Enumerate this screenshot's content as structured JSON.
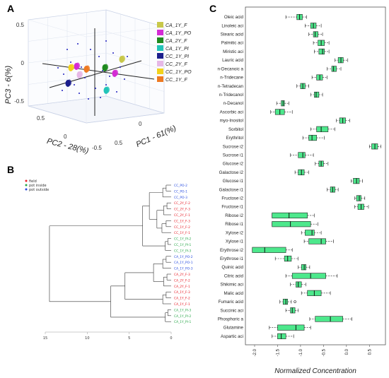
{
  "panels": {
    "a": "A",
    "b": "B",
    "c": "C"
  },
  "chart_data": [
    {
      "type": "scatter",
      "panel": "A",
      "xlabel": "PC2 - 28(%)",
      "ylabel": "PC3 - 6(%)",
      "zlabel": "PC1 - 61(%)",
      "tick_labels": {
        "pc2": [
          "0.5",
          "0",
          "-0.5"
        ],
        "pc1": [
          "0.5",
          "0"
        ],
        "pc3": [
          "0.5",
          "0",
          "-0.5"
        ]
      },
      "legend": [
        {
          "name": "CA_1Y_F",
          "color": "#c8c84a"
        },
        {
          "name": "CA_1Y_PO",
          "color": "#d42bd4"
        },
        {
          "name": "CA_2Y_F",
          "color": "#1e8a1e"
        },
        {
          "name": "CA_1Y_PI",
          "color": "#22c4b8"
        },
        {
          "name": "CC_1Y_PI",
          "color": "#1c1f8c"
        },
        {
          "name": "CC_2Y_F",
          "color": "#e6b8e6"
        },
        {
          "name": "CC_1Y_PO",
          "color": "#f2d21c"
        },
        {
          "name": "CC_1Y_F",
          "color": "#ee7a22"
        }
      ]
    },
    {
      "type": "dendrogram",
      "panel": "B",
      "legend": [
        {
          "name": "field",
          "color": "#e8202a"
        },
        {
          "name": "pot inside",
          "color": "#2aa84a"
        },
        {
          "name": "pot outside",
          "color": "#2a4ee0"
        }
      ],
      "leaves": [
        {
          "label": "CC_PO-2",
          "group": "pot outside"
        },
        {
          "label": "CC_PO-1",
          "group": "pot outside"
        },
        {
          "label": "CC_PO-3",
          "group": "pot outside"
        },
        {
          "label": "CC_2Y_F-2",
          "group": "field"
        },
        {
          "label": "CC_2Y_F-3",
          "group": "field"
        },
        {
          "label": "CC_2Y_F-1",
          "group": "field"
        },
        {
          "label": "CC_1Y_F-3",
          "group": "field"
        },
        {
          "label": "CC_1Y_F-2",
          "group": "field"
        },
        {
          "label": "CC_1Y_F-1",
          "group": "field"
        },
        {
          "label": "CC_1Y_PI-2",
          "group": "pot inside"
        },
        {
          "label": "CC_1Y_PI-1",
          "group": "pot inside"
        },
        {
          "label": "CC_1Y_PI-3",
          "group": "pot inside"
        },
        {
          "label": "CA_1Y_PO-2",
          "group": "pot outside"
        },
        {
          "label": "CA_1Y_PO-1",
          "group": "pot outside"
        },
        {
          "label": "CA_1Y_PO-3",
          "group": "pot outside"
        },
        {
          "label": "CA_2Y_F-3",
          "group": "field"
        },
        {
          "label": "CA_2Y_F-2",
          "group": "field"
        },
        {
          "label": "CA_2Y_F-1",
          "group": "field"
        },
        {
          "label": "CA_1Y_F-3",
          "group": "field"
        },
        {
          "label": "CA_1Y_F-2",
          "group": "field"
        },
        {
          "label": "CA_1Y_F-1",
          "group": "field"
        },
        {
          "label": "CA_1Y_PI-3",
          "group": "pot inside"
        },
        {
          "label": "CA_1Y_PI-2",
          "group": "pot inside"
        },
        {
          "label": "CA_1Y_PI-1",
          "group": "pot inside"
        }
      ],
      "x_ticks": [
        "15",
        "10",
        "5",
        "0"
      ]
    },
    {
      "type": "boxplot",
      "panel": "C",
      "xlabel": "Normalized Concentration",
      "xlim": [
        -2.2,
        0.85
      ],
      "x_ticks": [
        "-2.0",
        "-1.5",
        "-1.0",
        "-0.5",
        "0.0",
        "0.5"
      ],
      "box_color": "#4de88c",
      "items": [
        {
          "label": "Oleic acid",
          "whisker_low": -1.32,
          "q1": -1.08,
          "median": -1.02,
          "q3": -0.96,
          "whisker_high": -0.87
        },
        {
          "label": "Linoleic aci",
          "whisker_low": -0.9,
          "q1": -0.78,
          "median": -0.72,
          "q3": -0.66,
          "whisker_high": -0.55
        },
        {
          "label": "Stearic acid",
          "whisker_low": -0.82,
          "q1": -0.72,
          "median": -0.68,
          "q3": -0.62,
          "whisker_high": -0.52
        },
        {
          "label": "Palmitic aci",
          "whisker_low": -0.72,
          "q1": -0.62,
          "median": -0.55,
          "q3": -0.48,
          "whisker_high": -0.38
        },
        {
          "label": "Miristic aci",
          "whisker_low": -0.7,
          "q1": -0.6,
          "median": -0.52,
          "q3": -0.48,
          "whisker_high": -0.38
        },
        {
          "label": "Lauric acid",
          "whisker_low": -0.25,
          "q1": -0.18,
          "median": -0.12,
          "q3": -0.07,
          "whisker_high": 0.03
        },
        {
          "label": "n-Decanoic a",
          "whisker_low": -0.42,
          "q1": -0.32,
          "median": -0.28,
          "q3": -0.22,
          "whisker_high": -0.12
        },
        {
          "label": "n-Tridecane",
          "whisker_low": -0.75,
          "q1": -0.65,
          "median": -0.58,
          "q3": -0.52,
          "whisker_high": -0.42
        },
        {
          "label": "n-Tetradecan",
          "whisker_low": -1.08,
          "q1": -1.0,
          "median": -0.95,
          "q3": -0.9,
          "whisker_high": -0.82
        },
        {
          "label": "n-Tridecanol",
          "whisker_low": -0.78,
          "q1": -0.7,
          "median": -0.66,
          "q3": -0.6,
          "whisker_high": -0.52
        },
        {
          "label": "n-Decanol",
          "whisker_low": -1.52,
          "q1": -1.42,
          "median": -1.38,
          "q3": -1.35,
          "whisker_high": -1.25
        },
        {
          "label": "Ascorbic aci",
          "whisker_low": -1.65,
          "q1": -1.55,
          "median": -1.45,
          "q3": -1.35,
          "whisker_high": -1.18
        },
        {
          "label": "myo-Inositol",
          "whisker_low": -0.22,
          "q1": -0.15,
          "median": -0.08,
          "q3": -0.02,
          "whisker_high": 0.07
        },
        {
          "label": "Sorbitol",
          "whisker_low": -0.78,
          "q1": -0.65,
          "median": -0.55,
          "q3": -0.4,
          "whisker_high": -0.25
        },
        {
          "label": "Erythritol",
          "whisker_low": -0.95,
          "q1": -0.82,
          "median": -0.75,
          "q3": -0.65,
          "whisker_high": -0.48
        },
        {
          "label": "Sucrose i2",
          "whisker_low": 0.5,
          "q1": 0.55,
          "median": 0.62,
          "q3": 0.68,
          "whisker_high": 0.75
        },
        {
          "label": "Sucrose i1",
          "whisker_low": -1.22,
          "q1": -1.05,
          "median": -0.95,
          "q3": -0.9,
          "whisker_high": -0.72
        },
        {
          "label": "Glucose i2",
          "whisker_low": -0.68,
          "q1": -0.6,
          "median": -0.55,
          "q3": -0.5,
          "whisker_high": -0.4
        },
        {
          "label": "Galactose i2",
          "whisker_low": -1.12,
          "q1": -1.05,
          "median": -0.98,
          "q3": -0.92,
          "whisker_high": -0.82
        },
        {
          "label": "Glucose i1",
          "whisker_low": 0.1,
          "q1": 0.15,
          "median": 0.22,
          "q3": 0.28,
          "whisker_high": 0.35
        },
        {
          "label": "Galactose i1",
          "whisker_low": -0.42,
          "q1": -0.35,
          "median": -0.3,
          "q3": -0.25,
          "whisker_high": -0.18
        },
        {
          "label": "Fructose i2",
          "whisker_low": 0.18,
          "q1": 0.22,
          "median": 0.28,
          "q3": 0.32,
          "whisker_high": 0.4
        },
        {
          "label": "Fructose i1",
          "whisker_low": 0.18,
          "q1": 0.25,
          "median": 0.32,
          "q3": 0.38,
          "whisker_high": 0.48
        },
        {
          "label": "Ribose i2",
          "whisker_low": -1.62,
          "q1": -1.62,
          "median": -1.25,
          "q3": -0.85,
          "whisker_high": -0.7
        },
        {
          "label": "Ribose i1",
          "whisker_low": -1.62,
          "q1": -1.62,
          "median": -1.22,
          "q3": -0.78,
          "whisker_high": -0.62
        },
        {
          "label": "Xylose i2",
          "whisker_low": -0.98,
          "q1": -0.9,
          "median": -0.75,
          "q3": -0.7,
          "whisker_high": -0.55
        },
        {
          "label": "Xylose i1",
          "whisker_low": -0.92,
          "q1": -0.82,
          "median": -0.55,
          "q3": -0.45,
          "whisker_high": -0.28
        },
        {
          "label": "Erythrose i2",
          "whisker_low": -2.05,
          "q1": -2.05,
          "median": -1.78,
          "q3": -1.32,
          "whisker_high": -1.18
        },
        {
          "label": "Erythrose i1",
          "whisker_low": -1.55,
          "q1": -1.35,
          "median": -1.28,
          "q3": -1.2,
          "whisker_high": -1.05
        },
        {
          "label": "Quinic acid",
          "whisker_low": -1.05,
          "q1": -0.98,
          "median": -0.92,
          "q3": -0.88,
          "whisker_high": -0.8
        },
        {
          "label": "Citric acid",
          "whisker_low": -1.32,
          "q1": -1.18,
          "median": -0.78,
          "q3": -0.45,
          "whisker_high": -0.2
        },
        {
          "label": "Shikimic aci",
          "whisker_low": -1.22,
          "q1": -1.1,
          "median": -1.05,
          "q3": -0.98,
          "whisker_high": -0.88
        },
        {
          "label": "Malic acid",
          "whisker_low": -0.98,
          "q1": -0.85,
          "median": -0.7,
          "q3": -0.55,
          "whisker_high": -0.35
        },
        {
          "label": "Fumaric acid",
          "whisker_low": -1.45,
          "q1": -1.38,
          "median": -1.32,
          "q3": -1.28,
          "whisker_high": -1.2
        },
        {
          "label": "Succinic aci",
          "whisker_low": -1.32,
          "q1": -1.22,
          "median": -1.18,
          "q3": -1.12,
          "whisker_high": -1.05
        },
        {
          "label": "Phosphoric a",
          "whisker_low": -0.8,
          "q1": -0.68,
          "median": -0.35,
          "q3": -0.08,
          "whisker_high": 0.12
        },
        {
          "label": "Glutamine",
          "whisker_low": -1.68,
          "q1": -1.5,
          "median": -1.1,
          "q3": -0.92,
          "whisker_high": -0.78
        },
        {
          "label": "Aspartic aci",
          "whisker_low": -1.62,
          "q1": -1.5,
          "median": -1.42,
          "q3": -1.32,
          "whisker_high": -1.15
        }
      ]
    }
  ]
}
